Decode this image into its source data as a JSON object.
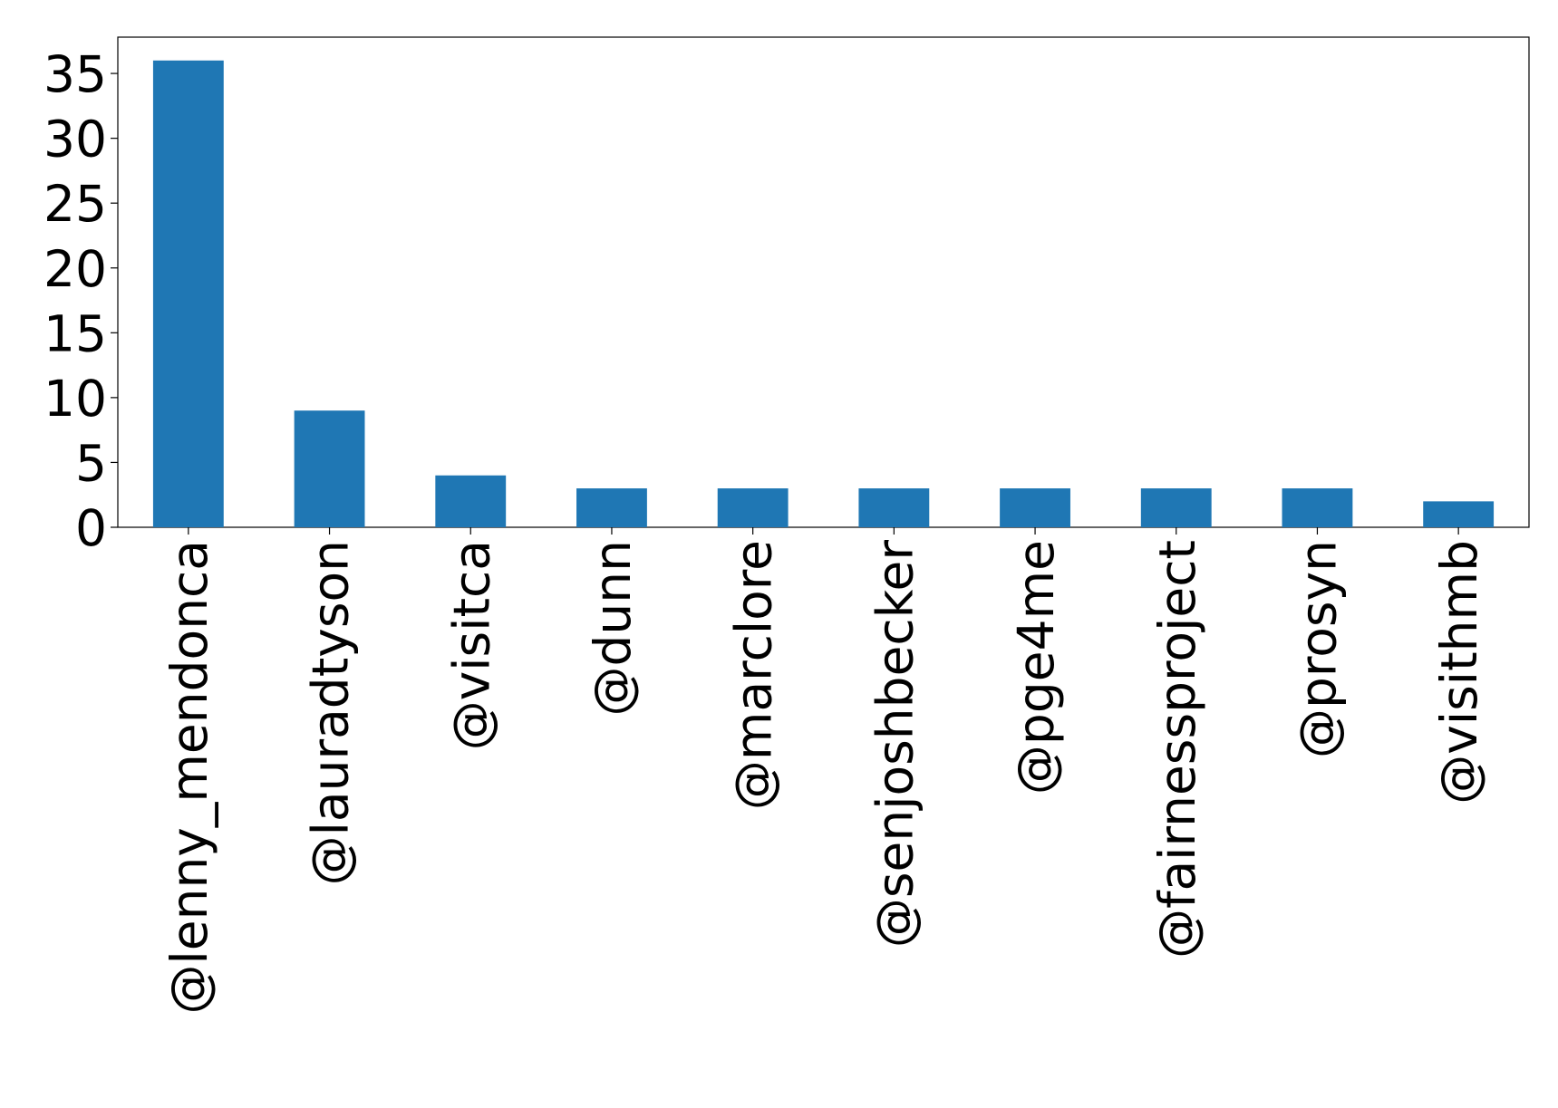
{
  "chart_data": {
    "type": "bar",
    "categories": [
      "@lenny_mendonca",
      "@lauradtyson",
      "@visitca",
      "@dunn",
      "@marclore",
      "@senjoshbecker",
      "@pge4me",
      "@fairnessproject",
      "@prosyn",
      "@visithmb"
    ],
    "values": [
      36,
      9,
      4,
      3,
      3,
      3,
      3,
      3,
      3,
      2
    ],
    "color": "#1f77b4",
    "ylim": [
      0,
      37.8
    ],
    "yticks": [
      0,
      5,
      10,
      15,
      20,
      25,
      30,
      35
    ],
    "grid": false
  }
}
